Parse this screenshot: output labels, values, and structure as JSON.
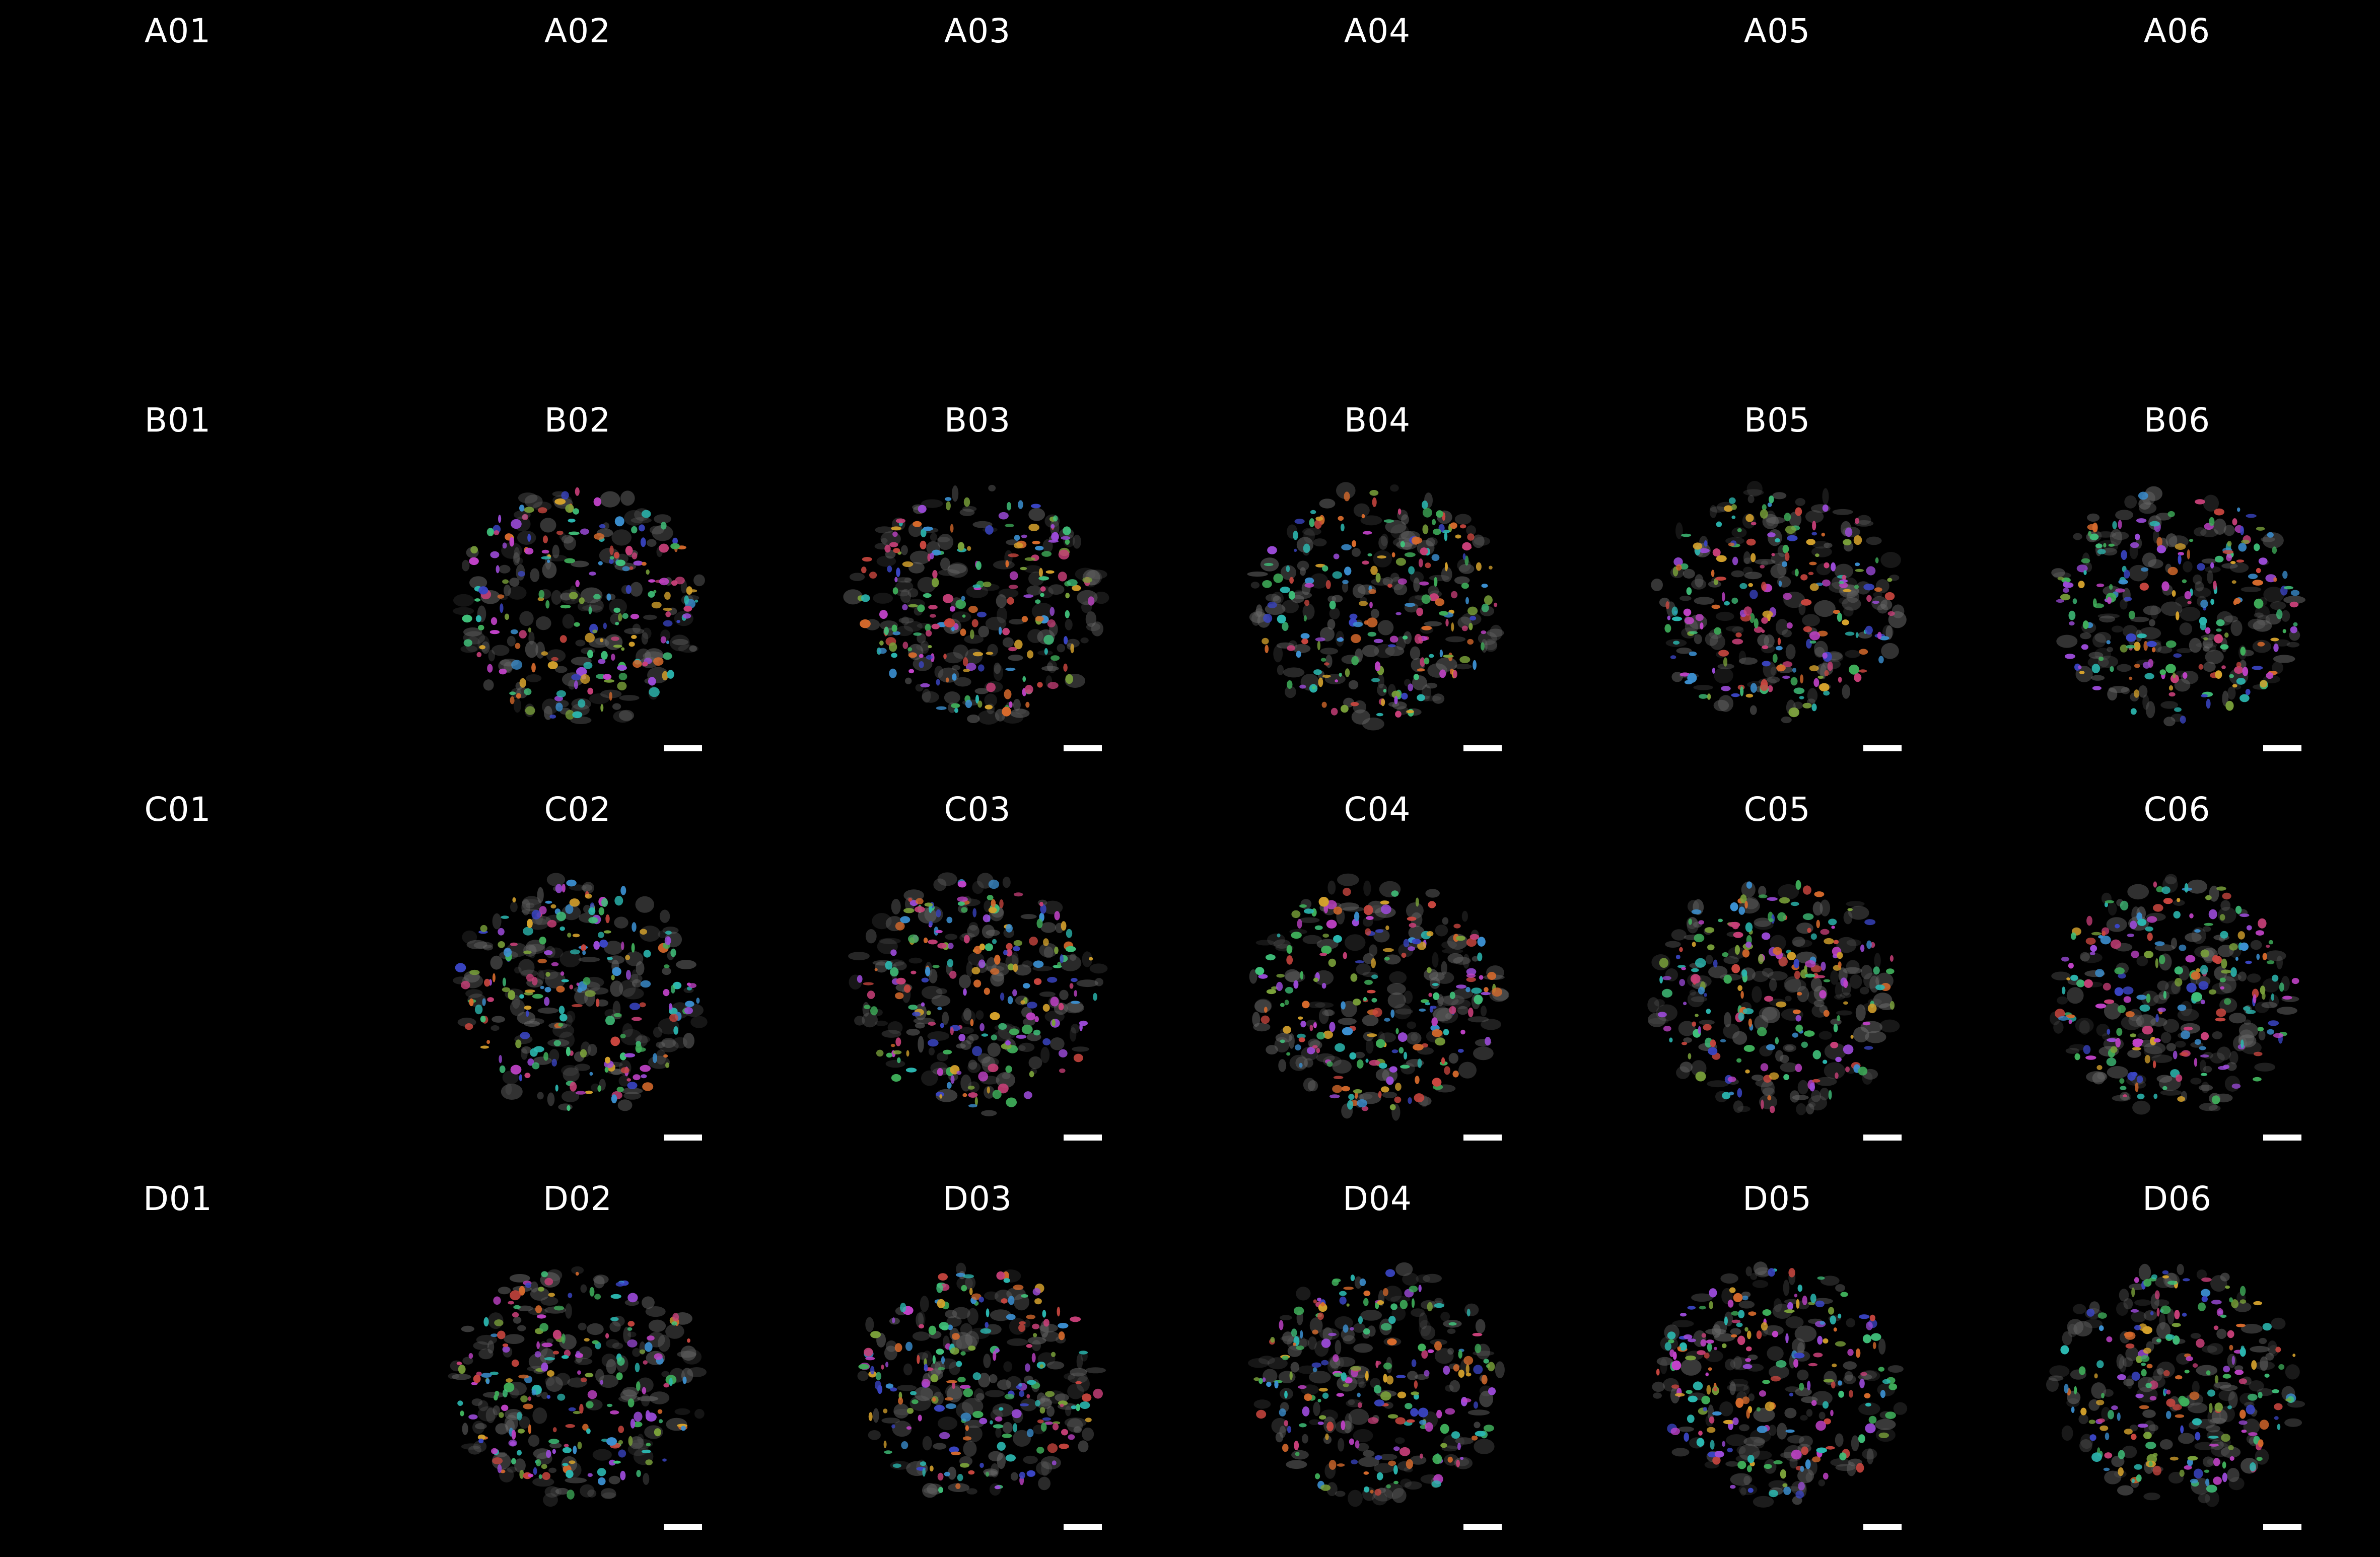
{
  "grid": {
    "rows": [
      "A",
      "B",
      "C",
      "D"
    ],
    "cols": [
      "01",
      "02",
      "03",
      "04",
      "05",
      "06"
    ],
    "wells": [
      [
        "A01",
        "A02",
        "A03",
        "A04",
        "A05",
        "A06"
      ],
      [
        "B01",
        "B02",
        "B03",
        "B04",
        "B05",
        "B06"
      ],
      [
        "C01",
        "C02",
        "C03",
        "C04",
        "C05",
        "C06"
      ],
      [
        "D01",
        "D02",
        "D03",
        "D04",
        "D05",
        "D06"
      ]
    ],
    "empty_wells": [
      "A01",
      "A02",
      "A03",
      "A04",
      "A05",
      "A06",
      "B01",
      "C01",
      "D01"
    ],
    "scale_bar": true
  },
  "colors": {
    "background": "#000000",
    "label": "#ffffff",
    "scalebar": "#ffffff",
    "tissue": "#6e6e6e",
    "segments": [
      "#3fae5a",
      "#c142c8",
      "#3a45c4",
      "#2bb7b0",
      "#d4a12c",
      "#c9463f",
      "#7aa13a",
      "#d76a2c",
      "#3b8fd0",
      "#9b4ad8",
      "#40c07a",
      "#c73f78"
    ]
  }
}
